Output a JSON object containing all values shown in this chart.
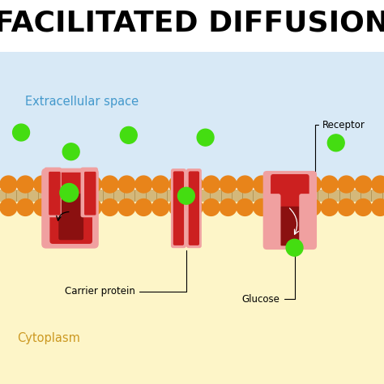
{
  "title": "FACILITATED DIFFUSION",
  "title_fontsize": 26,
  "title_fontweight": "bold",
  "label_extracellular": "Extracellular space",
  "label_cytoplasm": "Cytoplasm",
  "label_carrier": "Carrier protein",
  "label_glucose": "Glucose",
  "label_receptor": "Receptor",
  "color_background": "#ffffff",
  "color_extracellular_bg": "#b8d8f0",
  "color_cytoplasm_bg": "#fdf5c8",
  "color_membrane_orange": "#e8841a",
  "color_membrane_tail": "#d4b87a",
  "color_membrane_line": "#8a6a2a",
  "color_protein_pink": "#f0a0a0",
  "color_protein_red": "#cc2020",
  "color_protein_darkred": "#8b1010",
  "color_green_molecule": "#44dd11",
  "color_extracellular_label": "#4499cc",
  "color_cytoplasm_label": "#cc9922"
}
